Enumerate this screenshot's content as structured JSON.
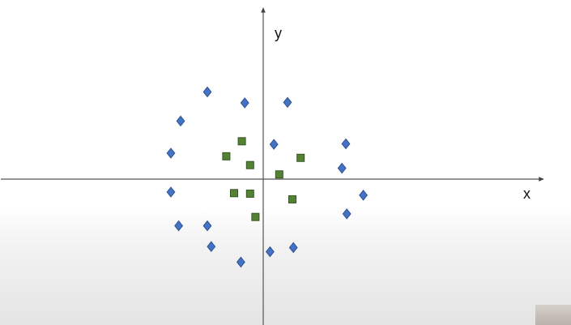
{
  "chart_data": {
    "type": "scatter",
    "title": "",
    "xlabel": "x",
    "ylabel": "y",
    "xlim": [
      -5.4,
      5.7
    ],
    "ylim": [
      -2.9,
      3.3
    ],
    "grid": false,
    "series": [
      {
        "marker": "diamond",
        "color": "#4472C4",
        "stroke": "#2F528F",
        "points": [
          [
            -1.15,
            1.68
          ],
          [
            -0.38,
            1.47
          ],
          [
            0.5,
            1.48
          ],
          [
            -1.7,
            1.12
          ],
          [
            -1.9,
            0.5
          ],
          [
            0.22,
            0.67
          ],
          [
            1.7,
            0.68
          ],
          [
            1.62,
            0.21
          ],
          [
            -1.9,
            -0.25
          ],
          [
            2.06,
            -0.31
          ],
          [
            1.72,
            -0.67
          ],
          [
            -1.74,
            -0.9
          ],
          [
            -1.15,
            -0.9
          ],
          [
            -1.07,
            -1.3
          ],
          [
            0.62,
            -1.32
          ],
          [
            0.14,
            -1.4
          ],
          [
            -0.46,
            -1.6
          ]
        ]
      },
      {
        "marker": "square",
        "color": "#548235",
        "stroke": "#375623",
        "points": [
          [
            -0.44,
            0.73
          ],
          [
            -0.76,
            0.44
          ],
          [
            -0.27,
            0.27
          ],
          [
            0.77,
            0.41
          ],
          [
            0.33,
            0.09
          ],
          [
            -0.6,
            -0.27
          ],
          [
            -0.27,
            -0.28
          ],
          [
            0.6,
            -0.39
          ],
          [
            -0.16,
            -0.73
          ]
        ]
      }
    ]
  }
}
